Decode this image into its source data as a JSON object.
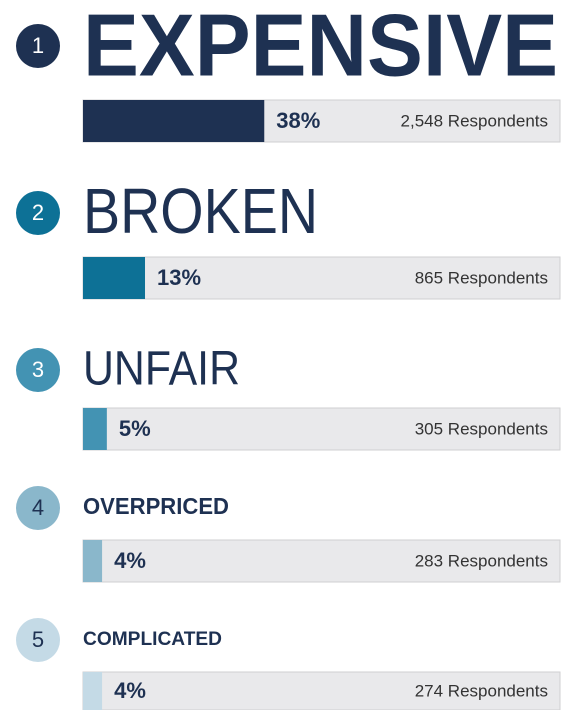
{
  "chart_data": {
    "type": "bar",
    "ranks": [
      1,
      2,
      3,
      4,
      5
    ],
    "categories": [
      "EXPENSIVE",
      "BROKEN",
      "UNFAIR",
      "OVERPRICED",
      "COMPLICATED"
    ],
    "values": [
      38,
      13,
      5,
      4,
      4
    ],
    "value_labels": [
      "38%",
      "13%",
      "5%",
      "4%",
      "4%"
    ],
    "respondents": [
      2548,
      865,
      305,
      283,
      274
    ],
    "respondent_labels": [
      "2,548 Respondents",
      "865 Respondents",
      "305 Respondents",
      "283 Respondents",
      "274 Respondents"
    ],
    "colors": [
      "#1e3152",
      "#0d7196",
      "#4393b3",
      "#8ab7cb",
      "#c4dae6"
    ],
    "xlim": [
      0,
      100
    ]
  }
}
